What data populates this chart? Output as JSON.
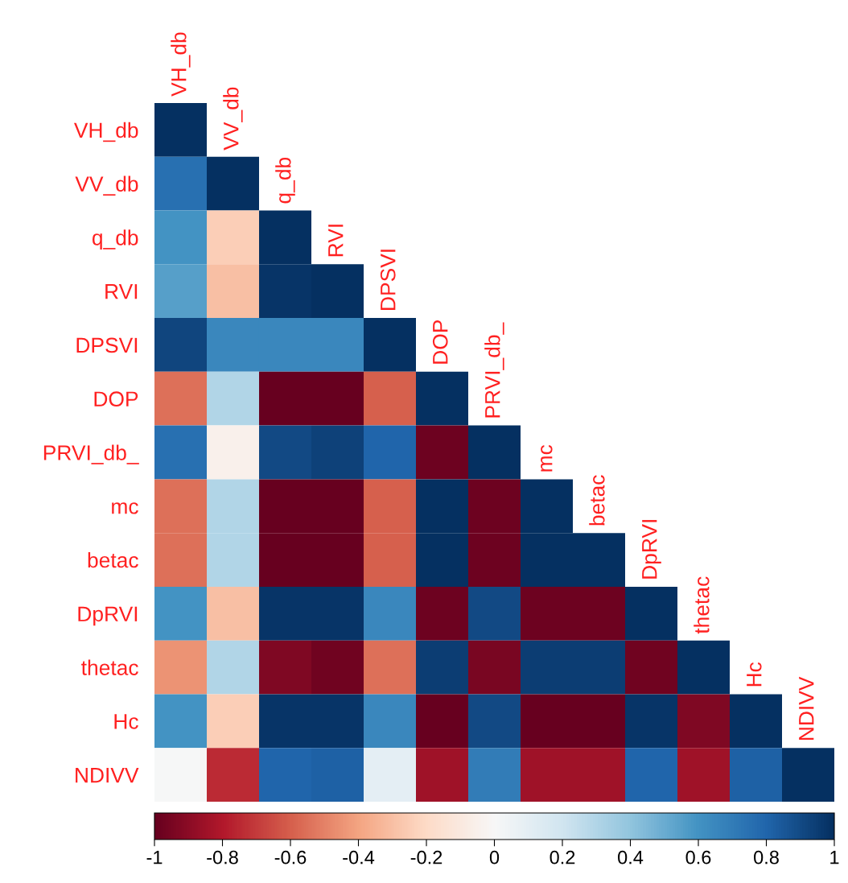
{
  "chart_data": {
    "type": "heatmap",
    "categories": [
      "VH_db",
      "VV_db",
      "q_db",
      "RVI",
      "DPSVI",
      "DOP",
      "PRVI_db_",
      "mc",
      "betac",
      "DpRVI",
      "thetac",
      "Hc",
      "NDIVV"
    ],
    "y_categories": [
      "VH_db",
      "VV_db",
      "q_db",
      "RVI",
      "DPSVI",
      "DOP",
      "PRVI_db_",
      "mc",
      "betac",
      "DpRVI",
      "thetac",
      "Hc",
      "NDIVV"
    ],
    "cells": [
      [
        1,
        null,
        null,
        null,
        null,
        null,
        null,
        null,
        null,
        null,
        null,
        null,
        null
      ],
      [
        0.75,
        1,
        null,
        null,
        null,
        null,
        null,
        null,
        null,
        null,
        null,
        null,
        null
      ],
      [
        0.6,
        -0.25,
        1,
        null,
        null,
        null,
        null,
        null,
        null,
        null,
        null,
        null,
        null
      ],
      [
        0.55,
        -0.3,
        0.98,
        1,
        null,
        null,
        null,
        null,
        null,
        null,
        null,
        null,
        null
      ],
      [
        0.92,
        0.65,
        0.65,
        0.65,
        1,
        null,
        null,
        null,
        null,
        null,
        null,
        null,
        null
      ],
      [
        -0.55,
        0.3,
        -1,
        -1,
        -0.6,
        1,
        null,
        null,
        null,
        null,
        null,
        null,
        null
      ],
      [
        0.75,
        -0.05,
        0.9,
        0.93,
        0.8,
        -0.98,
        1,
        null,
        null,
        null,
        null,
        null,
        null
      ],
      [
        -0.55,
        0.3,
        -1,
        -1,
        -0.6,
        1,
        -0.98,
        1,
        null,
        null,
        null,
        null,
        null
      ],
      [
        -0.55,
        0.3,
        -1,
        -1,
        -0.6,
        1,
        -0.98,
        1,
        1,
        null,
        null,
        null,
        null
      ],
      [
        0.6,
        -0.3,
        0.98,
        0.98,
        0.65,
        -0.98,
        0.9,
        -0.98,
        -0.98,
        1,
        null,
        null,
        null
      ],
      [
        -0.45,
        0.3,
        -0.93,
        -0.97,
        -0.55,
        0.95,
        -0.95,
        0.95,
        0.95,
        -0.97,
        1,
        null,
        null
      ],
      [
        0.6,
        -0.25,
        0.98,
        0.98,
        0.65,
        -1,
        0.9,
        -1,
        -1,
        0.98,
        -0.93,
        1,
        null
      ],
      [
        0.0,
        -0.75,
        0.8,
        0.82,
        0.1,
        -0.85,
        0.7,
        -0.85,
        -0.85,
        0.8,
        -0.85,
        0.82,
        1
      ]
    ],
    "clim": [
      -1,
      1
    ],
    "cticks": [
      -1,
      -0.8,
      -0.6,
      -0.4,
      -0.2,
      0,
      0.2,
      0.4,
      0.6,
      0.8,
      1
    ]
  }
}
